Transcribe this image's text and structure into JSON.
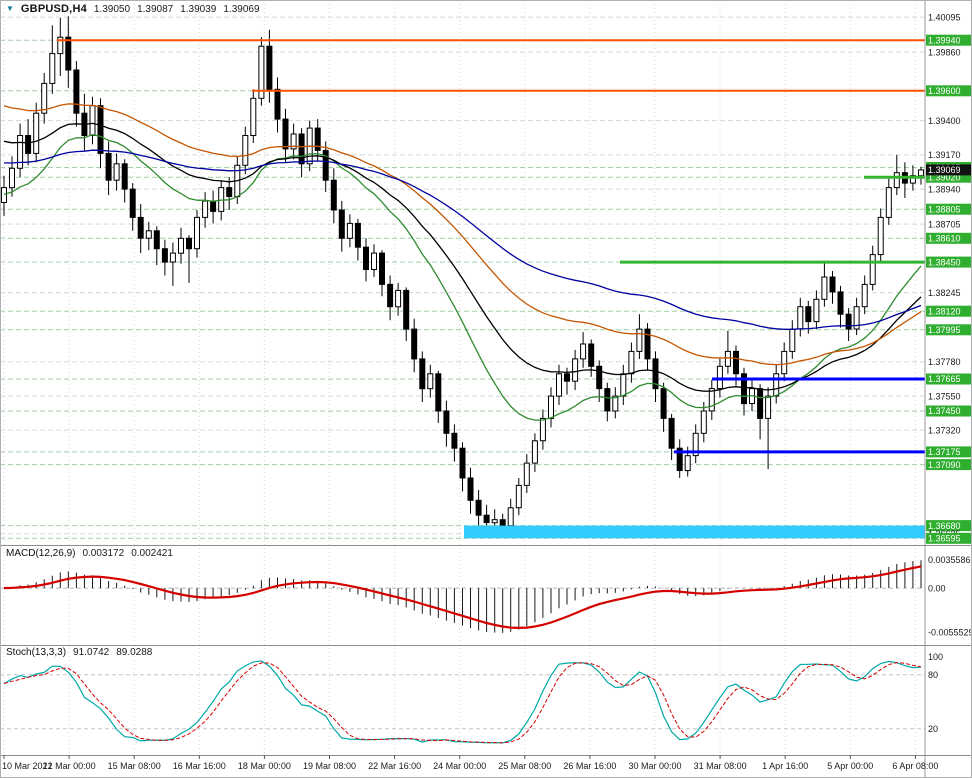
{
  "header": {
    "marker_glyph": "▼",
    "symbol": "GBPUSD,H4",
    "open": "1.39050",
    "high": "1.39087",
    "low": "1.39039",
    "close": "1.39069"
  },
  "colors": {
    "background": "#ffffff",
    "grid": "#d8d8d8",
    "level_dashed": "#a6cfa6",
    "bull": "#ffffff",
    "bear": "#000000",
    "candle_outline": "#000000",
    "ma_fast": "#2e8b2e",
    "ma_mid": "#000000",
    "ma_slow": "#c55500",
    "ma_slowest": "#0000a0",
    "resistance": "#ff4f00",
    "support_green": "#33b533",
    "support_blue": "#0000ff",
    "band": "#33ccff",
    "macd_hist": "#1a1a1a",
    "macd_signal": "#d40000",
    "stoch_main": "#00a8a8",
    "stoch_signal": "#d40000",
    "axis_text": "#1a1a1a",
    "label_bg": "#2fae2f",
    "label_text": "#ffffff",
    "current_bg": "#111111",
    "separator": "#8c8c8c"
  },
  "chart_data": {
    "type": "candlestick",
    "symbol": "GBPUSD",
    "timeframe": "H4",
    "title": "GBPUSD,H4 1.39050 1.39087 1.39039 1.39069",
    "x_labels": [
      "10 Mar 2021",
      "12 Mar 00:00",
      "15 Mar 08:00",
      "16 Mar 16:00",
      "18 Mar 00:00",
      "19 Mar 08:00",
      "22 Mar 16:00",
      "24 Mar 00:00",
      "25 Mar 08:00",
      "26 Mar 16:00",
      "30 Mar 00:00",
      "31 Mar 08:00",
      "1 Apr 16:00",
      "5 Apr 00:00",
      "6 Apr 08:00"
    ],
    "price_axis": {
      "min": 1.3655,
      "max": 1.4021,
      "ticks": [
        {
          "label": "1.40095",
          "hl": false
        },
        {
          "label": "1.39940",
          "hl": true
        },
        {
          "label": "1.39860",
          "hl": false
        },
        {
          "label": "1.39600",
          "hl": true
        },
        {
          "label": "1.39400",
          "hl": false
        },
        {
          "label": "1.39170",
          "hl": false
        },
        {
          "label": "1.39085",
          "hl": true
        },
        {
          "label": "1.39020",
          "hl": true
        },
        {
          "label": "1.38940",
          "hl": false
        },
        {
          "label": "1.38805",
          "hl": true
        },
        {
          "label": "1.38705",
          "hl": false
        },
        {
          "label": "1.38610",
          "hl": true
        },
        {
          "label": "1.38450",
          "hl": true
        },
        {
          "label": "1.38245",
          "hl": false
        },
        {
          "label": "1.38120",
          "hl": true
        },
        {
          "label": "1.37995",
          "hl": true
        },
        {
          "label": "1.37780",
          "hl": false
        },
        {
          "label": "1.37665",
          "hl": true
        },
        {
          "label": "1.37550",
          "hl": false
        },
        {
          "label": "1.37450",
          "hl": true
        },
        {
          "label": "1.37320",
          "hl": false
        },
        {
          "label": "1.37175",
          "hl": true
        },
        {
          "label": "1.37090",
          "hl": true
        },
        {
          "label": "1.36680",
          "hl": true
        },
        {
          "label": "1.36625",
          "hl": false
        },
        {
          "label": "1.36595",
          "hl": true
        }
      ]
    },
    "current_price": {
      "label": "1.39069",
      "value": 1.39069
    },
    "candles": [
      [
        1.3885,
        1.3903,
        1.3876,
        1.3895
      ],
      [
        1.3895,
        1.3916,
        1.3889,
        1.3908
      ],
      [
        1.3908,
        1.3938,
        1.3902,
        1.393
      ],
      [
        1.393,
        1.3941,
        1.391,
        1.3918
      ],
      [
        1.3918,
        1.3952,
        1.3912,
        1.3945
      ],
      [
        1.3945,
        1.3972,
        1.3938,
        1.3965
      ],
      [
        1.3965,
        1.4004,
        1.3958,
        1.3985
      ],
      [
        1.3985,
        1.4009,
        1.397,
        1.3996
      ],
      [
        1.3996,
        1.401,
        1.3962,
        1.3974
      ],
      [
        1.3974,
        1.398,
        1.3936,
        1.3945
      ],
      [
        1.3945,
        1.3958,
        1.392,
        1.393
      ],
      [
        1.393,
        1.3956,
        1.3924,
        1.395
      ],
      [
        1.395,
        1.3955,
        1.3908,
        1.3918
      ],
      [
        1.3918,
        1.3926,
        1.389,
        1.39
      ],
      [
        1.39,
        1.3918,
        1.3893,
        1.3911
      ],
      [
        1.3911,
        1.3914,
        1.3885,
        1.3894
      ],
      [
        1.3894,
        1.3898,
        1.3866,
        1.3875
      ],
      [
        1.3875,
        1.3884,
        1.3851,
        1.3861
      ],
      [
        1.3861,
        1.3872,
        1.3853,
        1.3866
      ],
      [
        1.3866,
        1.3869,
        1.3843,
        1.3854
      ],
      [
        1.3854,
        1.386,
        1.3836,
        1.3845
      ],
      [
        1.3845,
        1.3858,
        1.3829,
        1.3851
      ],
      [
        1.3851,
        1.3868,
        1.3844,
        1.3861
      ],
      [
        1.3861,
        1.3863,
        1.3831,
        1.3854
      ],
      [
        1.3854,
        1.388,
        1.3848,
        1.3875
      ],
      [
        1.3875,
        1.3892,
        1.3868,
        1.3886
      ],
      [
        1.3886,
        1.3893,
        1.3871,
        1.3879
      ],
      [
        1.3879,
        1.39,
        1.3873,
        1.3895
      ],
      [
        1.3895,
        1.3902,
        1.388,
        1.3889
      ],
      [
        1.3889,
        1.3916,
        1.3884,
        1.391
      ],
      [
        1.391,
        1.3936,
        1.3904,
        1.393
      ],
      [
        1.393,
        1.3961,
        1.3925,
        1.3955
      ],
      [
        1.3955,
        1.3996,
        1.395,
        1.399
      ],
      [
        1.399,
        1.4001,
        1.3952,
        1.3961
      ],
      [
        1.3961,
        1.3969,
        1.3932,
        1.3941
      ],
      [
        1.3941,
        1.3948,
        1.3912,
        1.3921
      ],
      [
        1.3921,
        1.3938,
        1.3914,
        1.3931
      ],
      [
        1.3931,
        1.3935,
        1.3902,
        1.3911
      ],
      [
        1.3911,
        1.394,
        1.3906,
        1.3935
      ],
      [
        1.3935,
        1.3941,
        1.3913,
        1.392
      ],
      [
        1.392,
        1.3926,
        1.3892,
        1.39
      ],
      [
        1.39,
        1.3908,
        1.3871,
        1.388
      ],
      [
        1.388,
        1.3886,
        1.3852,
        1.3861
      ],
      [
        1.3861,
        1.3877,
        1.3855,
        1.3871
      ],
      [
        1.3871,
        1.3874,
        1.3846,
        1.3855
      ],
      [
        1.3855,
        1.3861,
        1.3832,
        1.384
      ],
      [
        1.384,
        1.3857,
        1.3835,
        1.3851
      ],
      [
        1.3851,
        1.3853,
        1.3822,
        1.383
      ],
      [
        1.383,
        1.3836,
        1.3806,
        1.3815
      ],
      [
        1.3815,
        1.3831,
        1.3809,
        1.3826
      ],
      [
        1.3826,
        1.3828,
        1.3792,
        1.38
      ],
      [
        1.38,
        1.3807,
        1.3771,
        1.378
      ],
      [
        1.378,
        1.3785,
        1.3751,
        1.376
      ],
      [
        1.376,
        1.3776,
        1.3754,
        1.377
      ],
      [
        1.377,
        1.3772,
        1.3737,
        1.3745
      ],
      [
        1.3745,
        1.3752,
        1.3721,
        1.373
      ],
      [
        1.373,
        1.3736,
        1.3711,
        1.372
      ],
      [
        1.372,
        1.3724,
        1.3691,
        1.37
      ],
      [
        1.37,
        1.3707,
        1.3676,
        1.3685
      ],
      [
        1.3685,
        1.3692,
        1.3667,
        1.3675
      ],
      [
        1.3675,
        1.3682,
        1.3663,
        1.367
      ],
      [
        1.367,
        1.3679,
        1.3664,
        1.3672
      ],
      [
        1.3672,
        1.3676,
        1.3662,
        1.3668
      ],
      [
        1.3668,
        1.3686,
        1.3664,
        1.368
      ],
      [
        1.368,
        1.37,
        1.3675,
        1.3695
      ],
      [
        1.3695,
        1.3716,
        1.369,
        1.371
      ],
      [
        1.371,
        1.373,
        1.3704,
        1.3725
      ],
      [
        1.3725,
        1.3746,
        1.3719,
        1.374
      ],
      [
        1.374,
        1.3761,
        1.3734,
        1.3755
      ],
      [
        1.3755,
        1.3776,
        1.3749,
        1.377
      ],
      [
        1.377,
        1.3774,
        1.3756,
        1.3765
      ],
      [
        1.3765,
        1.3786,
        1.3759,
        1.378
      ],
      [
        1.378,
        1.3798,
        1.3774,
        1.379
      ],
      [
        1.379,
        1.3793,
        1.3768,
        1.3775
      ],
      [
        1.3775,
        1.3779,
        1.3751,
        1.376
      ],
      [
        1.376,
        1.3764,
        1.3738,
        1.3745
      ],
      [
        1.3745,
        1.3761,
        1.374,
        1.3755
      ],
      [
        1.3755,
        1.3776,
        1.3749,
        1.377
      ],
      [
        1.377,
        1.3791,
        1.3764,
        1.3785
      ],
      [
        1.3785,
        1.381,
        1.378,
        1.38
      ],
      [
        1.38,
        1.3804,
        1.3772,
        1.378
      ],
      [
        1.378,
        1.3785,
        1.3751,
        1.376
      ],
      [
        1.376,
        1.3764,
        1.3731,
        1.374
      ],
      [
        1.374,
        1.3743,
        1.3712,
        1.372
      ],
      [
        1.372,
        1.3726,
        1.37,
        1.3705
      ],
      [
        1.3705,
        1.3721,
        1.3701,
        1.3715
      ],
      [
        1.3715,
        1.3736,
        1.371,
        1.373
      ],
      [
        1.373,
        1.3751,
        1.3724,
        1.3745
      ],
      [
        1.3745,
        1.3766,
        1.3739,
        1.376
      ],
      [
        1.376,
        1.3781,
        1.3754,
        1.3775
      ],
      [
        1.3775,
        1.3799,
        1.377,
        1.3785
      ],
      [
        1.3785,
        1.3789,
        1.3762,
        1.377
      ],
      [
        1.377,
        1.3774,
        1.3742,
        1.375
      ],
      [
        1.375,
        1.3766,
        1.3745,
        1.376
      ],
      [
        1.376,
        1.3763,
        1.3726,
        1.374
      ],
      [
        1.374,
        1.3761,
        1.3706,
        1.3755
      ],
      [
        1.3755,
        1.3776,
        1.375,
        1.377
      ],
      [
        1.377,
        1.3791,
        1.3765,
        1.3785
      ],
      [
        1.3785,
        1.3806,
        1.378,
        1.38
      ],
      [
        1.38,
        1.3821,
        1.3795,
        1.3815
      ],
      [
        1.3815,
        1.3819,
        1.3797,
        1.3805
      ],
      [
        1.3805,
        1.3826,
        1.38,
        1.382
      ],
      [
        1.382,
        1.3846,
        1.3815,
        1.3835
      ],
      [
        1.3835,
        1.3839,
        1.3817,
        1.3825
      ],
      [
        1.3825,
        1.3829,
        1.3801,
        1.381
      ],
      [
        1.381,
        1.3814,
        1.3792,
        1.38
      ],
      [
        1.38,
        1.3821,
        1.3796,
        1.3815
      ],
      [
        1.3815,
        1.3836,
        1.381,
        1.383
      ],
      [
        1.383,
        1.3856,
        1.3826,
        1.385
      ],
      [
        1.385,
        1.3881,
        1.3845,
        1.3875
      ],
      [
        1.3875,
        1.3901,
        1.387,
        1.3895
      ],
      [
        1.3895,
        1.3917,
        1.389,
        1.3905
      ],
      [
        1.3905,
        1.3912,
        1.3888,
        1.3898
      ],
      [
        1.3898,
        1.391,
        1.3893,
        1.3903
      ],
      [
        1.3903,
        1.3909,
        1.3897,
        1.39069
      ]
    ],
    "moving_averages": [
      {
        "name": "ema-21",
        "period": 21,
        "seed": 1.389,
        "color_key": "ma_fast"
      },
      {
        "name": "ema-34",
        "period": 34,
        "seed": 1.3928,
        "color_key": "ma_mid"
      },
      {
        "name": "ema-55",
        "period": 55,
        "seed": 1.3952,
        "color_key": "ma_slow"
      },
      {
        "name": "ema-89",
        "period": 89,
        "seed": 1.3912,
        "color_key": "ma_slowest"
      }
    ],
    "objects": {
      "hlines": [
        {
          "price": 1.3994,
          "from_frac": 0.062,
          "color_key": "resistance",
          "width": 2
        },
        {
          "price": 1.396,
          "from_frac": 0.272,
          "color_key": "resistance",
          "width": 2
        },
        {
          "price": 1.3902,
          "from_frac": 0.934,
          "color_key": "support_green",
          "width": 3
        },
        {
          "price": 1.3845,
          "from_frac": 0.67,
          "color_key": "support_green",
          "width": 3
        },
        {
          "price": 1.37665,
          "from_frac": 0.77,
          "color_key": "support_blue",
          "width": 3
        },
        {
          "price": 1.37175,
          "from_frac": 0.729,
          "color_key": "support_blue",
          "width": 3
        }
      ],
      "band": {
        "top": 1.3668,
        "bottom": 1.36595,
        "from_frac": 0.502,
        "color_key": "band"
      }
    },
    "macd": {
      "label": "MACD(12,26,9)",
      "value_main": "0.003172",
      "value_signal": "0.002421",
      "params": [
        12,
        26,
        9
      ],
      "axis": {
        "vmax": 0.00531,
        "vmin": -0.00705,
        "labels": [
          {
            "text": "0.0035586",
            "value": 0.0035586
          },
          {
            "text": "0.00",
            "value": 0
          },
          {
            "text": "-0.0055529",
            "value": -0.0055529
          }
        ]
      }
    },
    "stoch": {
      "label": "Stoch(13,3,3)",
      "value_main": "91.0742",
      "value_signal": "89.0288",
      "params": [
        13,
        3,
        3
      ],
      "axis": {
        "vmax": 112,
        "vmin": -8,
        "labels": [
          {
            "text": "100",
            "value": 100
          },
          {
            "text": "80",
            "value": 80
          },
          {
            "text": "20",
            "value": 20
          }
        ],
        "guides": [
          80,
          20
        ]
      }
    }
  }
}
